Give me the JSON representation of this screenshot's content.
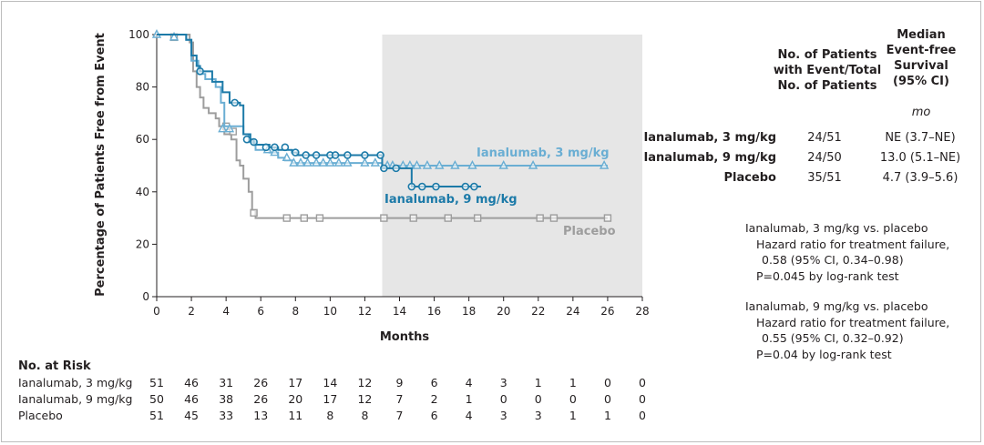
{
  "chart_data": {
    "type": "line",
    "subtype": "kaplan-meier",
    "xlabel": "Months",
    "ylabel": "Percentage of Patients Free from Event",
    "xlim": [
      0,
      28
    ],
    "ylim": [
      0,
      100
    ],
    "xticks": [
      0,
      2,
      4,
      6,
      8,
      10,
      12,
      14,
      16,
      18,
      20,
      22,
      24,
      26,
      28
    ],
    "yticks": [
      0,
      20,
      40,
      60,
      80,
      100
    ],
    "shaded_region": {
      "from": 13,
      "to": 28,
      "color": "#e6e6e6"
    },
    "series": [
      {
        "name": "Ianalumab, 3 mg/kg",
        "color": "#6aaed3",
        "marker": "triangle",
        "steps": [
          [
            0,
            100
          ],
          [
            1.7,
            98
          ],
          [
            2.0,
            90
          ],
          [
            2.4,
            85
          ],
          [
            2.8,
            83
          ],
          [
            3.4,
            80
          ],
          [
            3.7,
            74
          ],
          [
            3.9,
            65
          ],
          [
            4.3,
            65
          ],
          [
            5.0,
            62
          ],
          [
            5.3,
            59
          ],
          [
            5.7,
            56
          ],
          [
            6.5,
            55
          ],
          [
            7.0,
            53
          ],
          [
            7.4,
            52
          ],
          [
            7.8,
            51
          ],
          [
            8.2,
            51
          ],
          [
            12.5,
            51
          ],
          [
            13.0,
            50
          ],
          [
            14.0,
            50
          ],
          [
            26.0,
            50
          ]
        ],
        "censored": [
          [
            0,
            100
          ],
          [
            1.0,
            99
          ],
          [
            3.8,
            64
          ],
          [
            4.2,
            64
          ],
          [
            6.4,
            56
          ],
          [
            6.8,
            55
          ],
          [
            7.5,
            53
          ],
          [
            7.9,
            51
          ],
          [
            8.3,
            51
          ],
          [
            8.7,
            51
          ],
          [
            9.2,
            51
          ],
          [
            9.6,
            51
          ],
          [
            10.0,
            51
          ],
          [
            10.5,
            51
          ],
          [
            11.0,
            51
          ],
          [
            12.0,
            51
          ],
          [
            12.6,
            51
          ],
          [
            13.3,
            50
          ],
          [
            13.6,
            50
          ],
          [
            14.2,
            50
          ],
          [
            14.6,
            50
          ],
          [
            15.0,
            50
          ],
          [
            15.6,
            50
          ],
          [
            16.3,
            50
          ],
          [
            17.2,
            50
          ],
          [
            18.2,
            50
          ],
          [
            20.0,
            50
          ],
          [
            21.7,
            50
          ],
          [
            25.8,
            50
          ]
        ]
      },
      {
        "name": "Ianalumab, 9 mg/kg",
        "color": "#1c7aa8",
        "marker": "circle",
        "steps": [
          [
            0,
            100
          ],
          [
            1.7,
            98
          ],
          [
            2.0,
            92
          ],
          [
            2.3,
            88
          ],
          [
            2.5,
            86
          ],
          [
            3.2,
            82
          ],
          [
            3.8,
            78
          ],
          [
            4.2,
            74
          ],
          [
            4.8,
            73
          ],
          [
            5.0,
            62
          ],
          [
            5.4,
            60
          ],
          [
            5.6,
            58
          ],
          [
            6.5,
            57
          ],
          [
            7.0,
            56
          ],
          [
            7.8,
            55
          ],
          [
            8.1,
            54
          ],
          [
            12.9,
            54
          ],
          [
            13.0,
            49
          ],
          [
            14.7,
            42
          ],
          [
            18.7,
            42
          ]
        ],
        "censored": [
          [
            2.5,
            86
          ],
          [
            4.5,
            74
          ],
          [
            5.2,
            60
          ],
          [
            5.6,
            59
          ],
          [
            6.3,
            57
          ],
          [
            6.8,
            57
          ],
          [
            7.4,
            57
          ],
          [
            8.0,
            55
          ],
          [
            8.6,
            54
          ],
          [
            9.2,
            54
          ],
          [
            10.0,
            54
          ],
          [
            10.3,
            54
          ],
          [
            11.0,
            54
          ],
          [
            12.0,
            54
          ],
          [
            12.9,
            54
          ],
          [
            13.1,
            49
          ],
          [
            13.8,
            49
          ],
          [
            14.7,
            42
          ],
          [
            15.3,
            42
          ],
          [
            16.1,
            42
          ],
          [
            17.8,
            42
          ],
          [
            18.3,
            42
          ]
        ]
      },
      {
        "name": "Placebo",
        "color": "#9d9d9d",
        "marker": "square",
        "steps": [
          [
            0,
            100
          ],
          [
            1.9,
            97
          ],
          [
            2.1,
            86
          ],
          [
            2.3,
            80
          ],
          [
            2.5,
            76
          ],
          [
            2.7,
            72
          ],
          [
            3.0,
            70
          ],
          [
            3.4,
            68
          ],
          [
            3.6,
            65
          ],
          [
            3.9,
            62
          ],
          [
            4.3,
            60
          ],
          [
            4.6,
            52
          ],
          [
            4.8,
            50
          ],
          [
            5.0,
            45
          ],
          [
            5.3,
            40
          ],
          [
            5.5,
            33
          ],
          [
            5.7,
            30
          ],
          [
            26.0,
            30
          ]
        ],
        "censored": [
          [
            1.0,
            99
          ],
          [
            4.0,
            65
          ],
          [
            4.4,
            63
          ],
          [
            5.6,
            32
          ],
          [
            7.5,
            30
          ],
          [
            8.5,
            30
          ],
          [
            9.4,
            30
          ],
          [
            13.1,
            30
          ],
          [
            14.8,
            30
          ],
          [
            16.8,
            30
          ],
          [
            18.5,
            30
          ],
          [
            22.1,
            30
          ],
          [
            22.9,
            30
          ],
          [
            26.0,
            30
          ]
        ]
      }
    ]
  },
  "table": {
    "header_col1": [
      "No. of Patients",
      "with Event/Total",
      "No. of Patients"
    ],
    "header_col2": [
      "Median",
      "Event-free",
      "Survival",
      "(95% CI)"
    ],
    "unit": "mo",
    "rows": [
      {
        "name": "Ianalumab, 3 mg/kg",
        "events": "24/51",
        "median": "NE (3.7–NE)"
      },
      {
        "name": "Ianalumab, 9 mg/kg",
        "events": "24/50",
        "median": "13.0 (5.1–NE)"
      },
      {
        "name": "Placebo",
        "events": "35/51",
        "median": "4.7 (3.9–5.6)"
      }
    ]
  },
  "notes": [
    [
      "Ianalumab, 3 mg/kg vs. placebo",
      "Hazard ratio for treatment failure,",
      "0.58 (95% CI, 0.34–0.98)",
      "P=0.045 by log-rank test"
    ],
    [
      "Ianalumab, 9 mg/kg vs. placebo",
      "Hazard ratio for treatment failure,",
      "0.55 (95% CI, 0.32–0.92)",
      "P=0.04 by log-rank test"
    ]
  ],
  "at_risk": {
    "title": "No. at Risk",
    "rows": [
      {
        "name": "Ianalumab, 3 mg/kg",
        "values": [
          "51",
          "46",
          "31",
          "26",
          "17",
          "14",
          "12",
          "9",
          "6",
          "4",
          "3",
          "1",
          "1",
          "0",
          "0"
        ]
      },
      {
        "name": "Ianalumab, 9 mg/kg",
        "values": [
          "50",
          "46",
          "38",
          "26",
          "20",
          "17",
          "12",
          "7",
          "2",
          "1",
          "0",
          "0",
          "0",
          "0",
          "0"
        ]
      },
      {
        "name": "Placebo",
        "values": [
          "51",
          "45",
          "33",
          "13",
          "11",
          "8",
          "8",
          "7",
          "6",
          "4",
          "3",
          "3",
          "1",
          "1",
          "0"
        ]
      }
    ]
  }
}
